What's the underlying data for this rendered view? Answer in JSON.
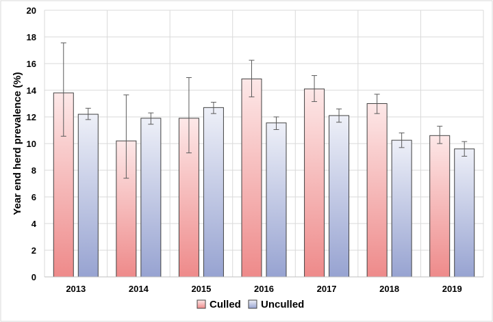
{
  "chart_data": {
    "type": "bar",
    "title": "",
    "xlabel": "",
    "ylabel": "Year end herd prevalence (%)",
    "ylim": [
      0,
      20
    ],
    "yticks": [
      0,
      2,
      4,
      6,
      8,
      10,
      12,
      14,
      16,
      18,
      20
    ],
    "grid": true,
    "legend_position": "bottom",
    "categories": [
      "2013",
      "2014",
      "2015",
      "2016",
      "2017",
      "2018",
      "2019"
    ],
    "series": [
      {
        "name": "Culled",
        "values": [
          13.8,
          10.2,
          11.9,
          14.85,
          14.1,
          13.0,
          10.6
        ],
        "error_low": [
          10.55,
          7.4,
          9.3,
          13.5,
          13.15,
          12.25,
          10.0
        ],
        "error_high": [
          17.55,
          13.65,
          14.95,
          16.25,
          15.1,
          13.7,
          11.3
        ],
        "gradient_top": "#fde8e8",
        "gradient_bottom": "#ee8a8a"
      },
      {
        "name": "Unculled",
        "values": [
          12.2,
          11.9,
          12.7,
          11.55,
          12.1,
          10.25,
          9.6
        ],
        "error_low": [
          11.8,
          11.45,
          12.25,
          11.05,
          11.6,
          9.7,
          9.05
        ],
        "error_high": [
          12.65,
          12.3,
          13.1,
          12.0,
          12.6,
          10.8,
          10.15
        ],
        "gradient_top": "#eef0f8",
        "gradient_bottom": "#97a3d1"
      }
    ]
  }
}
